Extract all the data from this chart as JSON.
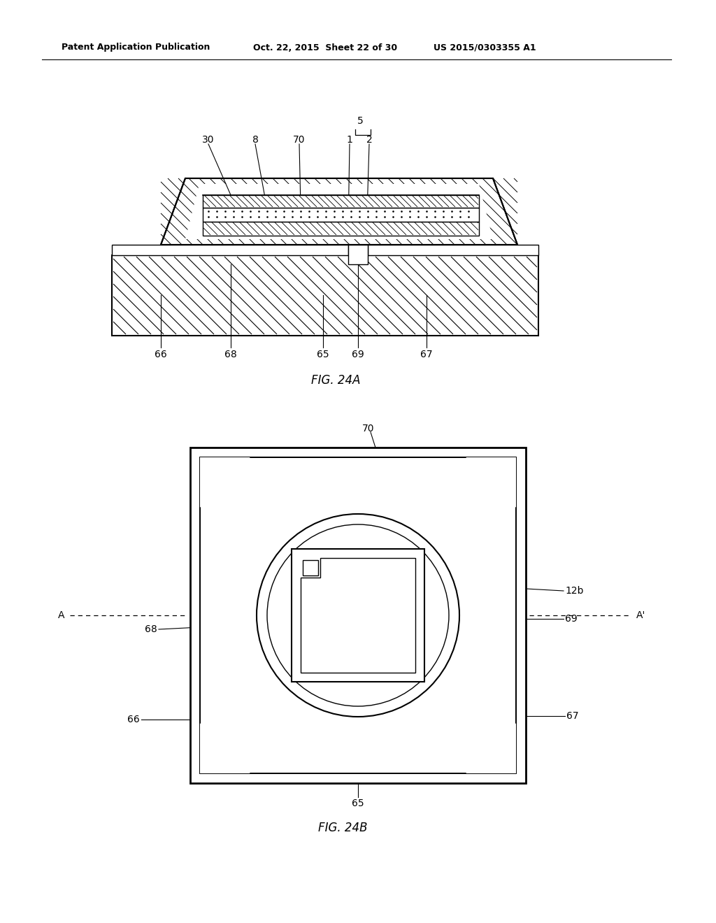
{
  "bg_color": "#ffffff",
  "line_color": "#000000",
  "header_left": "Patent Application Publication",
  "header_mid": "Oct. 22, 2015  Sheet 22 of 30",
  "header_right": "US 2015/0303355 A1",
  "fig24a_caption": "FIG. 24A",
  "fig24b_caption": "FIG. 24B"
}
